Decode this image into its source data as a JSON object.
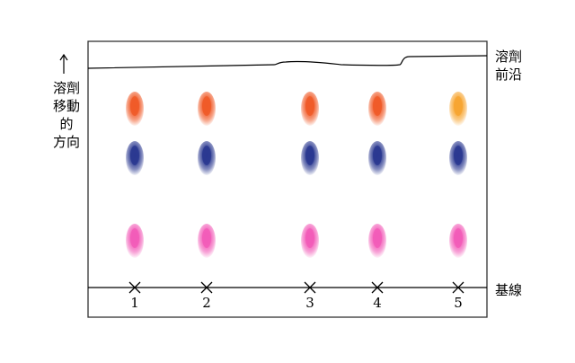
{
  "labels": {
    "direction": [
      "溶劑",
      "移動",
      "的",
      "方向"
    ],
    "front": [
      "溶劑",
      "前沿"
    ],
    "baseline": "基線"
  },
  "lanes": [
    {
      "number": "1",
      "spots": [
        "orange-red",
        "navy-blue",
        "pink"
      ]
    },
    {
      "number": "2",
      "spots": [
        "orange-red",
        "navy-blue",
        "pink"
      ]
    },
    {
      "number": "3",
      "spots": [
        "orange-red",
        "navy-blue",
        "pink"
      ]
    },
    {
      "number": "4",
      "spots": [
        "orange-red",
        "navy-blue",
        "pink"
      ]
    },
    {
      "number": "5",
      "spots": [
        "orange",
        "navy-blue",
        "pink"
      ]
    }
  ],
  "colors": {
    "orange-red": "#f05a28",
    "orange": "#f7a531",
    "navy-blue": "#2a3890",
    "pink": "#f25cb8"
  }
}
